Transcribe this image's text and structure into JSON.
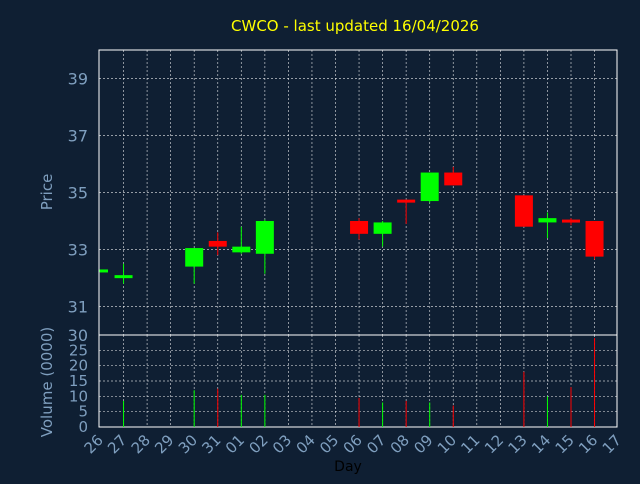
{
  "colors": {
    "background": "#0f1f33",
    "title": "#ffff00",
    "axis_text": "#7f9fbf",
    "day_label": "#000000",
    "grid": "#ffffff",
    "frame": "#ffffff",
    "up": "#00ff00",
    "down": "#ff0000"
  },
  "chart_data": [
    {
      "type": "candlestick",
      "title": "CWCO - last updated 16/04/2026",
      "ylabel": "Price",
      "xlabel": "",
      "ylim": [
        30,
        40
      ],
      "y_ticks": [
        30,
        31,
        33,
        35,
        37,
        39
      ],
      "grid": true,
      "x_tick_labels": [
        "26",
        "27",
        "28",
        "29",
        "30",
        "31",
        "01",
        "02",
        "03",
        "04",
        "05",
        "06",
        "07",
        "08",
        "09",
        "10",
        "11",
        "12",
        "13",
        "14",
        "15",
        "16",
        "17"
      ],
      "candles": [
        {
          "x": 0,
          "open": 32.25,
          "high": 32.3,
          "low": 32.2,
          "close": 32.3
        },
        {
          "x": 1,
          "open": 32.05,
          "high": 32.5,
          "low": 31.8,
          "close": 32.1
        },
        {
          "x": 4,
          "open": 32.4,
          "high": 33.05,
          "low": 31.8,
          "close": 33.05
        },
        {
          "x": 5,
          "open": 33.3,
          "high": 33.6,
          "low": 32.8,
          "close": 33.1
        },
        {
          "x": 6,
          "open": 32.9,
          "high": 33.8,
          "low": 32.85,
          "close": 33.1
        },
        {
          "x": 7,
          "open": 32.85,
          "high": 34.05,
          "low": 32.15,
          "close": 34.0
        },
        {
          "x": 11,
          "open": 34.0,
          "high": 34.1,
          "low": 33.35,
          "close": 33.55
        },
        {
          "x": 12,
          "open": 33.55,
          "high": 34.0,
          "low": 33.1,
          "close": 33.95
        },
        {
          "x": 13,
          "open": 34.75,
          "high": 34.75,
          "low": 33.9,
          "close": 34.7
        },
        {
          "x": 14,
          "open": 34.7,
          "high": 35.7,
          "low": 34.65,
          "close": 35.7
        },
        {
          "x": 15,
          "open": 35.7,
          "high": 35.9,
          "low": 35.25,
          "close": 35.25
        },
        {
          "x": 18,
          "open": 34.9,
          "high": 34.9,
          "low": 33.8,
          "close": 33.8
        },
        {
          "x": 19,
          "open": 33.95,
          "high": 34.3,
          "low": 33.4,
          "close": 34.1
        },
        {
          "x": 20,
          "open": 34.05,
          "high": 34.1,
          "low": 33.85,
          "close": 33.95
        },
        {
          "x": 21,
          "open": 34.0,
          "high": 34.0,
          "low": 32.65,
          "close": 32.75
        }
      ]
    },
    {
      "type": "bar",
      "ylabel": "Volume (0000)",
      "xlabel": "Day",
      "ylim": [
        0,
        30
      ],
      "y_ticks": [
        0,
        5,
        10,
        15,
        20,
        25,
        30
      ],
      "bars": [
        {
          "x": 1,
          "value": 8.5,
          "dir": "up"
        },
        {
          "x": 4,
          "value": 12,
          "dir": "up"
        },
        {
          "x": 5,
          "value": 12.5,
          "dir": "down"
        },
        {
          "x": 6,
          "value": 10.5,
          "dir": "up"
        },
        {
          "x": 7,
          "value": 10.5,
          "dir": "up"
        },
        {
          "x": 11,
          "value": 9.5,
          "dir": "down"
        },
        {
          "x": 12,
          "value": 8,
          "dir": "up"
        },
        {
          "x": 13,
          "value": 8.5,
          "dir": "down"
        },
        {
          "x": 14,
          "value": 8,
          "dir": "up"
        },
        {
          "x": 15,
          "value": 7,
          "dir": "down"
        },
        {
          "x": 18,
          "value": 18,
          "dir": "down"
        },
        {
          "x": 19,
          "value": 10,
          "dir": "up"
        },
        {
          "x": 20,
          "value": 13,
          "dir": "down"
        },
        {
          "x": 21,
          "value": 29,
          "dir": "down"
        }
      ]
    }
  ]
}
